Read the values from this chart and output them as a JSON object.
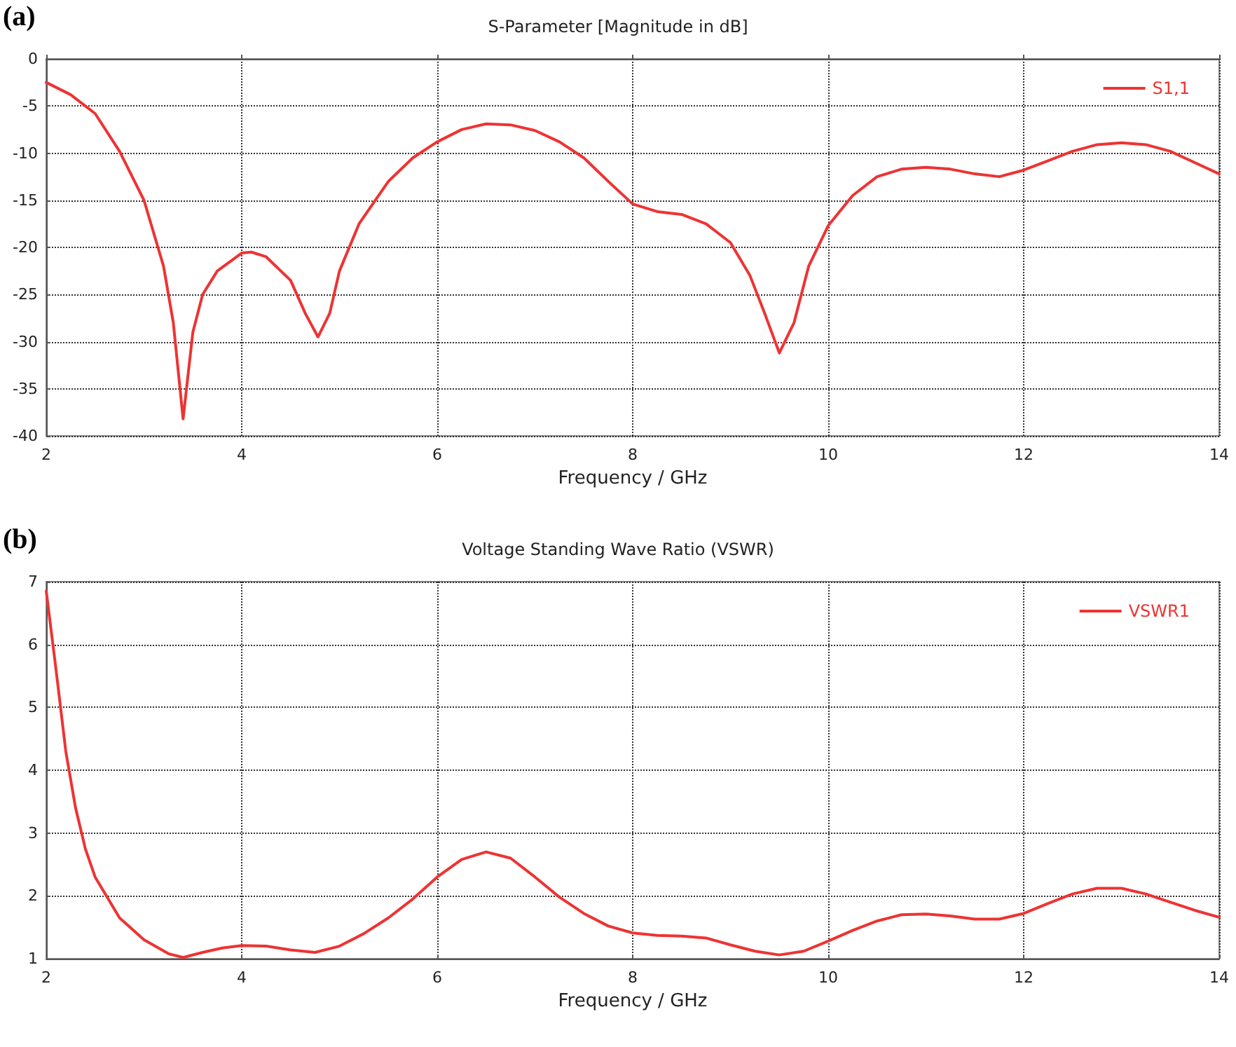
{
  "chart_data": [
    {
      "type": "line",
      "title": "S-Parameter [Magnitude in dB]",
      "xlabel": "Frequency / GHz",
      "annotations": [
        "(a)"
      ],
      "x": [
        2,
        2.25,
        2.5,
        2.75,
        3,
        3.2,
        3.3,
        3.4,
        3.5,
        3.6,
        3.75,
        4,
        4.1,
        4.25,
        4.5,
        4.65,
        4.78,
        4.9,
        5,
        5.2,
        5.5,
        5.75,
        6,
        6.25,
        6.5,
        6.75,
        7,
        7.25,
        7.5,
        7.75,
        8,
        8.25,
        8.5,
        8.75,
        9,
        9.2,
        9.35,
        9.5,
        9.65,
        9.8,
        10,
        10.25,
        10.5,
        10.75,
        11,
        11.25,
        11.5,
        11.75,
        12,
        12.25,
        12.5,
        12.75,
        13,
        13.25,
        13.5,
        13.75,
        14
      ],
      "series": [
        {
          "name": "S1,1",
          "color": "#ee3333",
          "values": [
            -2.5,
            -3.8,
            -5.8,
            -9.8,
            -15,
            -22,
            -28,
            -38.2,
            -29,
            -25,
            -22.5,
            -20.6,
            -20.5,
            -21,
            -23.5,
            -27,
            -29.5,
            -27,
            -22.5,
            -17.5,
            -13,
            -10.5,
            -8.8,
            -7.5,
            -6.9,
            -7,
            -7.6,
            -8.8,
            -10.5,
            -13,
            -15.4,
            -16.2,
            -16.5,
            -17.5,
            -19.5,
            -23,
            -27,
            -31.2,
            -28,
            -22,
            -17.7,
            -14.5,
            -12.5,
            -11.7,
            -11.5,
            -11.7,
            -12.2,
            -12.5,
            -11.8,
            -10.8,
            -9.8,
            -9.1,
            -8.9,
            -9.1,
            -9.8,
            -11,
            -12.2
          ]
        }
      ],
      "xlim": [
        2,
        14
      ],
      "xticks": [
        2,
        4,
        6,
        8,
        10,
        12,
        14
      ],
      "ylim": [
        -40,
        0
      ],
      "yticks": [
        -40,
        -35,
        -30,
        -25,
        -20,
        -15,
        -10,
        -5,
        0
      ],
      "grid": true,
      "legend": "top right",
      "marker": "none"
    },
    {
      "type": "line",
      "title": "Voltage Standing Wave Ratio (VSWR)",
      "xlabel": "Frequency / GHz",
      "annotations": [
        "(b)"
      ],
      "x": [
        2,
        2.1,
        2.2,
        2.3,
        2.4,
        2.5,
        2.75,
        3,
        3.25,
        3.4,
        3.6,
        3.8,
        4,
        4.25,
        4.5,
        4.75,
        5,
        5.25,
        5.5,
        5.75,
        6,
        6.25,
        6.5,
        6.75,
        7,
        7.25,
        7.5,
        7.75,
        8,
        8.25,
        8.5,
        8.75,
        9,
        9.25,
        9.5,
        9.75,
        10,
        10.25,
        10.5,
        10.75,
        11,
        11.25,
        11.5,
        11.75,
        12,
        12.25,
        12.5,
        12.75,
        13,
        13.25,
        13.5,
        13.75,
        14
      ],
      "series": [
        {
          "name": "VSWR1",
          "color": "#ee3333",
          "values": [
            6.85,
            5.6,
            4.3,
            3.4,
            2.75,
            2.3,
            1.65,
            1.3,
            1.08,
            1.02,
            1.1,
            1.17,
            1.21,
            1.2,
            1.14,
            1.1,
            1.2,
            1.4,
            1.65,
            1.95,
            2.3,
            2.58,
            2.7,
            2.6,
            2.3,
            1.98,
            1.72,
            1.52,
            1.41,
            1.37,
            1.36,
            1.33,
            1.22,
            1.12,
            1.06,
            1.12,
            1.28,
            1.45,
            1.6,
            1.7,
            1.71,
            1.68,
            1.63,
            1.63,
            1.72,
            1.88,
            2.03,
            2.12,
            2.12,
            2.03,
            1.9,
            1.77,
            1.66
          ]
        }
      ],
      "xlim": [
        2,
        14
      ],
      "xticks": [
        2,
        4,
        6,
        8,
        10,
        12,
        14
      ],
      "ylim": [
        1,
        7
      ],
      "yticks": [
        1,
        2,
        3,
        4,
        5,
        6,
        7
      ],
      "grid": true,
      "legend": "top right",
      "marker": "none"
    }
  ]
}
